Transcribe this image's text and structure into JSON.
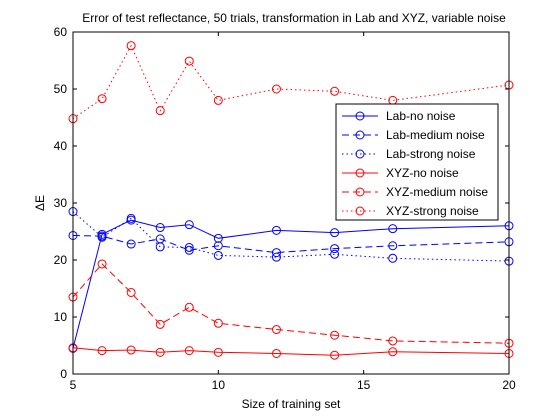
{
  "chart_data": {
    "type": "line",
    "title": "Error of test reflectance, 50 trials, transformation in Lab and XYZ, variable noise",
    "xlabel": "Size of training set",
    "ylabel": "ΔE",
    "xlim": [
      5,
      20
    ],
    "ylim": [
      0,
      60
    ],
    "xticks": [
      5,
      10,
      15,
      20
    ],
    "yticks": [
      0,
      10,
      20,
      30,
      40,
      50,
      60
    ],
    "grid": false,
    "legend_position": "right",
    "x": [
      5,
      6,
      7,
      8,
      9,
      10,
      12,
      14,
      16,
      20
    ],
    "series": [
      {
        "name": "Lab-no noise",
        "color": "#0000ff",
        "dash": "solid",
        "marker": "circle",
        "values": [
          4.5,
          24.5,
          27,
          25.7,
          26.2,
          23.8,
          25.2,
          24.8,
          25.5,
          26
        ]
      },
      {
        "name": "Lab-medium noise",
        "color": "#0000ff",
        "dash": "dashed",
        "marker": "circle",
        "values": [
          24.3,
          24.2,
          22.8,
          23.7,
          21.7,
          22.5,
          21.3,
          22,
          22.5,
          23.2
        ]
      },
      {
        "name": "Lab-strong noise",
        "color": "#0000ff",
        "dash": "dotted",
        "marker": "circle",
        "values": [
          28.5,
          24,
          27.3,
          22.3,
          22.2,
          20.8,
          20.5,
          21,
          20.3,
          19.8
        ]
      },
      {
        "name": "XYZ-no noise",
        "color": "#ff0000",
        "dash": "solid",
        "marker": "circle",
        "values": [
          4.6,
          4.1,
          4.2,
          3.8,
          4.1,
          3.8,
          3.6,
          3.3,
          3.9,
          3.6
        ]
      },
      {
        "name": "XYZ-medium noise",
        "color": "#ff0000",
        "dash": "dashed",
        "marker": "circle",
        "values": [
          13.5,
          19.3,
          14.3,
          8.7,
          11.7,
          8.9,
          7.8,
          6.8,
          5.8,
          5.4
        ]
      },
      {
        "name": "XYZ-strong noise",
        "color": "#ff0000",
        "dash": "dotted",
        "marker": "circle",
        "values": [
          44.8,
          48.3,
          57.6,
          46.2,
          54.9,
          48,
          50,
          49.6,
          48,
          50.7
        ]
      }
    ]
  }
}
